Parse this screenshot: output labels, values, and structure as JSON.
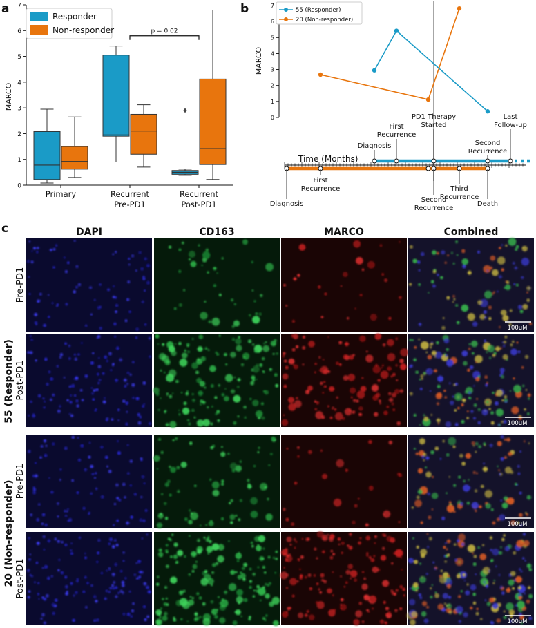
{
  "colors": {
    "responder": "#1a9bc7",
    "non_responder": "#e8750d",
    "panel_bg": "#050510"
  },
  "panel_labels": {
    "a": "a",
    "b": "b",
    "c": "c"
  },
  "chart_data": [
    {
      "type": "box",
      "panel": "a",
      "ylabel": "MARCO",
      "ylim": [
        0,
        7
      ],
      "yticks": [
        "0",
        "1",
        "2",
        "3",
        "4",
        "5",
        "6",
        "7"
      ],
      "categories": [
        {
          "line1": "Primary",
          "line2": ""
        },
        {
          "line1": "Recurrent",
          "line2": "Pre-PD1"
        },
        {
          "line1": "Recurrent",
          "line2": "Post-PD1"
        }
      ],
      "legend": {
        "placement": "top-left",
        "items": [
          "Responder",
          "Non-responder"
        ]
      },
      "series": [
        {
          "name": "Responder",
          "boxes": [
            {
              "whislo": 0.08,
              "q1": 0.22,
              "med": 0.78,
              "q3": 2.08,
              "whishi": 2.95,
              "fliers": []
            },
            {
              "whislo": 0.9,
              "q1": 1.9,
              "med": 1.95,
              "q3": 5.05,
              "whishi": 5.4,
              "fliers": []
            },
            {
              "whislo": 0.38,
              "q1": 0.42,
              "med": 0.5,
              "q3": 0.57,
              "whishi": 0.62,
              "fliers": [
                2.9
              ]
            }
          ]
        },
        {
          "name": "Non-responder",
          "boxes": [
            {
              "whislo": 0.3,
              "q1": 0.62,
              "med": 0.92,
              "q3": 1.5,
              "whishi": 2.65,
              "fliers": []
            },
            {
              "whislo": 0.7,
              "q1": 1.2,
              "med": 2.1,
              "q3": 2.75,
              "whishi": 3.12,
              "fliers": []
            },
            {
              "whislo": 0.22,
              "q1": 0.8,
              "med": 1.42,
              "q3": 4.12,
              "whishi": 6.8,
              "fliers": []
            }
          ]
        }
      ],
      "annotation": {
        "text": "p = 0.02",
        "from_category": 1,
        "to_category": 2,
        "y": 5.8
      }
    },
    {
      "type": "line",
      "panel": "b",
      "ylabel": "MARCO",
      "ylim": [
        0,
        7
      ],
      "yticks": [
        "0",
        "1",
        "2",
        "3",
        "4",
        "5",
        "6",
        "7"
      ],
      "legend": {
        "placement": "top-left"
      },
      "series": [
        {
          "name": "55 (Responder)",
          "color": "responder",
          "x": [
            130,
            162,
            294
          ],
          "y": [
            2.95,
            5.42,
            0.38
          ]
        },
        {
          "name": "20 (Non-responder)",
          "color": "non_responder",
          "x": [
            52,
            208,
            253
          ],
          "y": [
            2.68,
            1.12,
            6.82
          ]
        }
      ],
      "therapy_line_x": 216,
      "timeline": {
        "axis_label": "Time (Months)",
        "responder_events": [
          {
            "x": 130,
            "label": "Diagnosis"
          },
          {
            "x": 162,
            "label": "First\nRecurrence"
          },
          {
            "x": 216,
            "label": "PD1 Therapy\nStarted"
          },
          {
            "x": 294,
            "label": "Second\nRecurrence"
          },
          {
            "x": 327,
            "label": "Last\nFollow-up"
          }
        ],
        "non_responder_events": [
          {
            "x": 3,
            "label": "Diagnosis"
          },
          {
            "x": 52,
            "label": "First\nRecurrence"
          },
          {
            "x": 208,
            "label": ""
          },
          {
            "x": 216,
            "label": "Second\nRecurrence"
          },
          {
            "x": 253,
            "label": "Third\nRecurrence"
          },
          {
            "x": 294,
            "label": "Death"
          }
        ]
      }
    }
  ],
  "micrographs": {
    "columns": [
      "DAPI",
      "CD163",
      "MARCO",
      "Combined"
    ],
    "groups": [
      {
        "label": "55 (Responder)",
        "rows": [
          "Pre-PD1",
          "Post-PD1"
        ]
      },
      {
        "label": "20 (Non-responder)",
        "rows": [
          "Pre-PD1",
          "Post-PD1"
        ]
      }
    ],
    "scale_bar": "100uM"
  }
}
